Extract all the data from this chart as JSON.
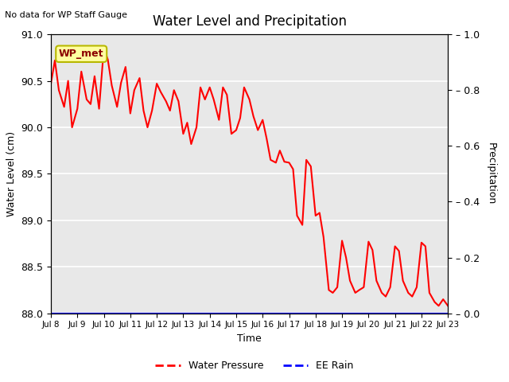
{
  "title": "Water Level and Precipitation",
  "subtitle": "No data for WP Staff Gauge",
  "xlabel": "Time",
  "ylabel_left": "Water Level (cm)",
  "ylabel_right": "Precipitation",
  "annotation": "WP_met",
  "legend_entries": [
    "Water Pressure",
    "EE Rain"
  ],
  "background_color": "#e8e8e8",
  "ylim_left": [
    88.0,
    91.0
  ],
  "ylim_right": [
    0.0,
    1.0
  ],
  "xtick_labels": [
    "Jul 8",
    "Jul 9",
    "Jul 10",
    "Jul 11",
    "Jul 12",
    "Jul 13",
    "Jul 14",
    "Jul 15",
    "Jul 16",
    "Jul 17",
    "Jul 18",
    "Jul 19",
    "Jul 20",
    "Jul 21",
    "Jul 22",
    "Jul 23"
  ],
  "xlim": [
    0,
    15
  ],
  "x_wp": [
    0.0,
    0.15,
    0.3,
    0.5,
    0.65,
    0.8,
    1.0,
    1.15,
    1.35,
    1.5,
    1.65,
    1.82,
    2.0,
    2.15,
    2.3,
    2.5,
    2.65,
    2.82,
    3.0,
    3.15,
    3.35,
    3.5,
    3.65,
    3.82,
    4.0,
    4.15,
    4.35,
    4.5,
    4.65,
    4.82,
    5.0,
    5.15,
    5.3,
    5.5,
    5.65,
    5.82,
    6.0,
    6.15,
    6.35,
    6.5,
    6.65,
    6.82,
    7.0,
    7.15,
    7.3,
    7.5,
    7.65,
    7.82,
    8.0,
    8.15,
    8.3,
    8.5,
    8.65,
    8.82,
    9.0,
    9.15,
    9.3,
    9.5,
    9.65,
    9.82,
    10.0,
    10.15,
    10.3,
    10.5,
    10.65,
    10.82,
    11.0,
    11.15,
    11.3,
    11.5,
    11.65,
    11.82,
    12.0,
    12.15,
    12.3,
    12.5,
    12.65,
    12.82,
    13.0,
    13.15,
    13.3,
    13.5,
    13.65,
    13.82,
    14.0,
    14.15,
    14.3,
    14.5,
    14.65,
    14.82,
    15.0
  ],
  "y_wp": [
    90.47,
    90.72,
    90.4,
    90.22,
    90.5,
    90.0,
    90.2,
    90.6,
    90.3,
    90.25,
    90.55,
    90.2,
    90.85,
    90.73,
    90.45,
    90.22,
    90.48,
    90.65,
    90.15,
    90.4,
    90.53,
    90.18,
    90.0,
    90.18,
    90.47,
    90.38,
    90.28,
    90.18,
    90.4,
    90.28,
    89.93,
    90.05,
    89.82,
    90.0,
    90.43,
    90.3,
    90.43,
    90.3,
    90.08,
    90.43,
    90.35,
    89.93,
    89.97,
    90.1,
    90.43,
    90.3,
    90.12,
    89.97,
    90.08,
    89.88,
    89.65,
    89.62,
    89.75,
    89.63,
    89.62,
    89.55,
    89.05,
    88.95,
    89.65,
    89.58,
    89.05,
    89.08,
    88.82,
    88.25,
    88.22,
    88.28,
    88.78,
    88.6,
    88.35,
    88.22,
    88.25,
    88.28,
    88.77,
    88.68,
    88.35,
    88.22,
    88.18,
    88.28,
    88.72,
    88.67,
    88.35,
    88.22,
    88.18,
    88.28,
    88.76,
    88.72,
    88.22,
    88.12,
    88.08,
    88.15,
    88.08
  ]
}
